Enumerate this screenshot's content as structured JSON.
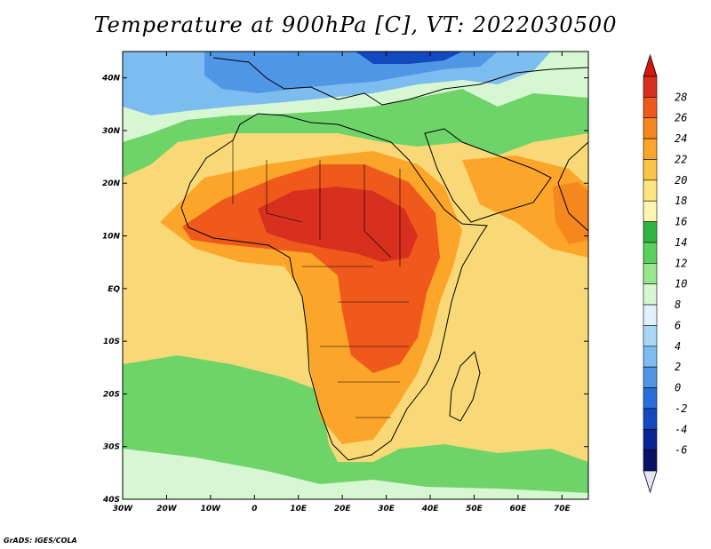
{
  "title": "Temperature at 900hPa [C], VT: 2022030500",
  "credit": "GrADS: IGES/COLA",
  "map": {
    "projection": "latlon",
    "lon_range": [
      -30,
      76
    ],
    "lat_range": [
      -40,
      45
    ],
    "lon_ticks": [
      {
        "value": -30,
        "label": "30W"
      },
      {
        "value": -20,
        "label": "20W"
      },
      {
        "value": -10,
        "label": "10W"
      },
      {
        "value": 0,
        "label": "0"
      },
      {
        "value": 10,
        "label": "10E"
      },
      {
        "value": 20,
        "label": "20E"
      },
      {
        "value": 30,
        "label": "30E"
      },
      {
        "value": 40,
        "label": "40E"
      },
      {
        "value": 50,
        "label": "50E"
      },
      {
        "value": 60,
        "label": "60E"
      },
      {
        "value": 70,
        "label": "70E"
      }
    ],
    "lat_ticks": [
      {
        "value": 40,
        "label": "40N"
      },
      {
        "value": 30,
        "label": "30N"
      },
      {
        "value": 20,
        "label": "20N"
      },
      {
        "value": 10,
        "label": "10N"
      },
      {
        "value": 0,
        "label": "EQ"
      },
      {
        "value": -10,
        "label": "10S"
      },
      {
        "value": -20,
        "label": "20S"
      },
      {
        "value": -30,
        "label": "30S"
      },
      {
        "value": -40,
        "label": "40S"
      }
    ],
    "background_color": "#f9d977"
  },
  "colorbar": {
    "labels": [
      "28",
      "26",
      "24",
      "22",
      "20",
      "18",
      "16",
      "14",
      "12",
      "10",
      "8",
      "6",
      "4",
      "2",
      "0",
      "-2",
      "-4",
      "-6"
    ],
    "colors_top_to_bottom": [
      "#d7301f",
      "#ef5a1c",
      "#f5871f",
      "#fba62a",
      "#fcc546",
      "#fde580",
      "#fef6b0",
      "#2fb642",
      "#5ad05d",
      "#97e68d",
      "#d7f7d2",
      "#e1f2fd",
      "#a9d8f7",
      "#7dbcef",
      "#4f97e5",
      "#2a6fd9",
      "#1249c1",
      "#0a2394",
      "#081164"
    ],
    "top_arrow_color": "#d4180e",
    "bottom_arrow_color": "#e5e5f8"
  }
}
